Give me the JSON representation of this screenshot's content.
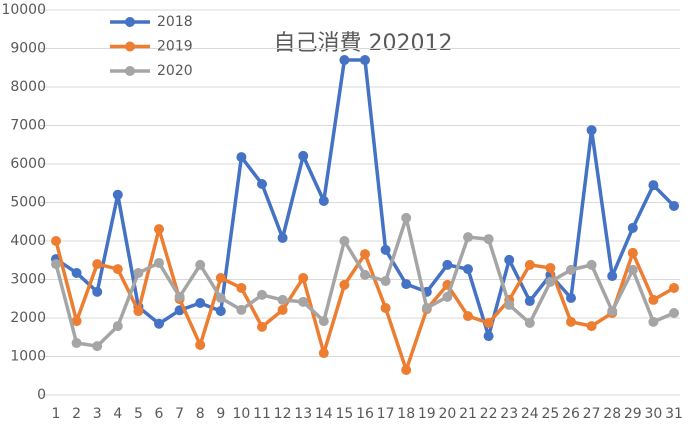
{
  "chart_data": {
    "type": "line",
    "title": "自己消費 202012",
    "categories": [
      "1",
      "2",
      "3",
      "4",
      "5",
      "6",
      "7",
      "8",
      "9",
      "10",
      "11",
      "12",
      "13",
      "14",
      "15",
      "16",
      "17",
      "18",
      "19",
      "20",
      "21",
      "22",
      "23",
      "24",
      "25",
      "26",
      "27",
      "28",
      "29",
      "30",
      "31"
    ],
    "series": [
      {
        "name": "2018",
        "color": "#4472c4",
        "values": [
          3530,
          3170,
          2680,
          5200,
          2290,
          1850,
          2200,
          2390,
          2180,
          6180,
          5480,
          4080,
          6210,
          5040,
          8700,
          8700,
          3770,
          2880,
          2680,
          3380,
          3270,
          1530,
          3510,
          2440,
          3120,
          2520,
          6880,
          3090,
          4340,
          5450,
          4910
        ]
      },
      {
        "name": "2019",
        "color": "#ed7d31",
        "values": [
          4000,
          1920,
          3400,
          3270,
          2180,
          4310,
          2490,
          1300,
          3040,
          2780,
          1770,
          2210,
          3040,
          1090,
          2860,
          3660,
          2260,
          650,
          2230,
          2860,
          2050,
          1870,
          2470,
          3380,
          3300,
          1900,
          1790,
          2130,
          3690,
          2470,
          2780
        ]
      },
      {
        "name": "2020",
        "color": "#a5a5a5",
        "values": [
          3400,
          1350,
          1270,
          1790,
          3170,
          3430,
          2550,
          3380,
          2520,
          2210,
          2600,
          2470,
          2420,
          1920,
          4000,
          3120,
          2960,
          4600,
          2260,
          2550,
          4100,
          4050,
          2340,
          1870,
          2940,
          3250,
          3380,
          2180,
          3250,
          1900,
          2130
        ]
      }
    ],
    "ylim": [
      0,
      10000
    ],
    "yticks": [
      0,
      1000,
      2000,
      3000,
      4000,
      5000,
      6000,
      7000,
      8000,
      9000,
      10000
    ],
    "grid": true,
    "legend": "top-left"
  }
}
